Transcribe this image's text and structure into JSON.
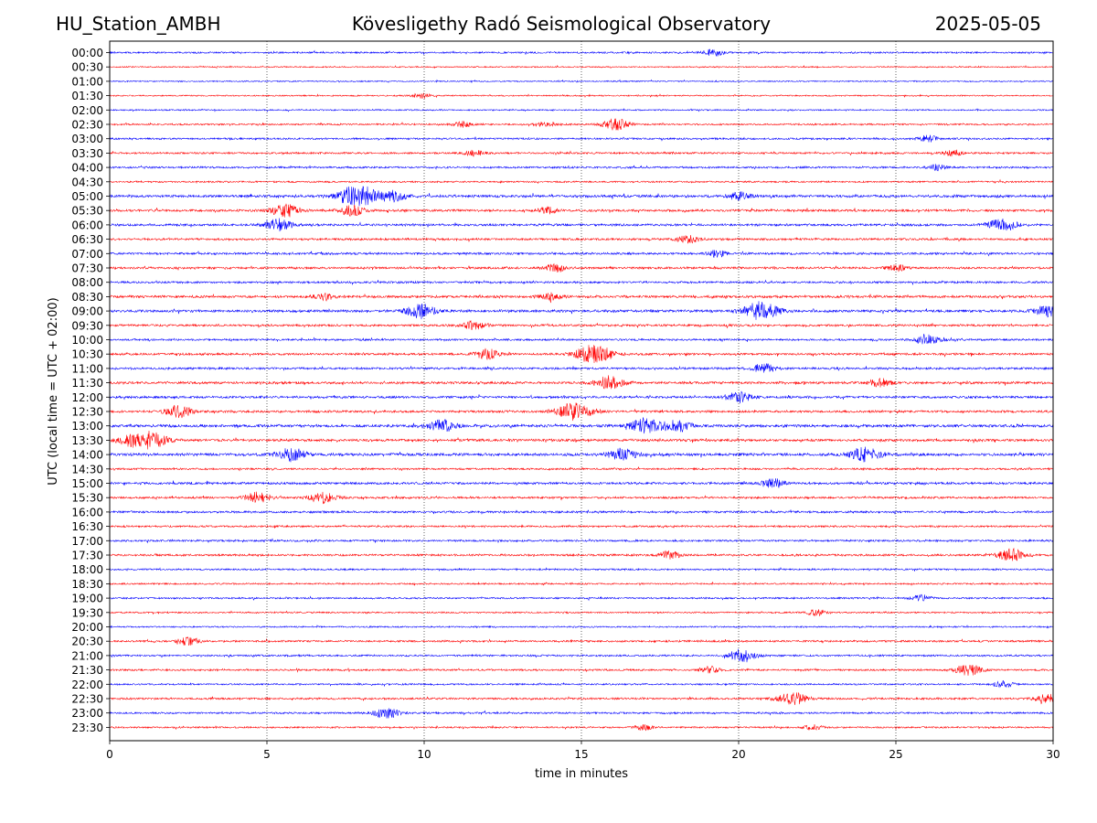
{
  "header": {
    "station": "HU_Station_AMBH",
    "observatory": "Kövesligethy Radó Seismological Observatory",
    "date": "2025-05-05"
  },
  "chart_data": {
    "type": "line",
    "title": "Kövesligethy Radó Seismological Observatory",
    "xlabel": "time in minutes",
    "ylabel": "UTC (local time = UTC + 02:00)",
    "xlim": [
      0,
      30
    ],
    "x_ticks": [
      0,
      5,
      10,
      15,
      20,
      25,
      30
    ],
    "grid": "vertical dotted lines at 5, 10, 15, 20, 25",
    "line_colors": [
      "#0000ff",
      "#ff0000"
    ],
    "rows": [
      "00:00",
      "00:30",
      "01:00",
      "01:30",
      "02:00",
      "02:30",
      "03:00",
      "03:30",
      "04:00",
      "04:30",
      "05:00",
      "05:30",
      "06:00",
      "06:30",
      "07:00",
      "07:30",
      "08:00",
      "08:30",
      "09:00",
      "09:30",
      "10:00",
      "10:30",
      "11:00",
      "11:30",
      "12:00",
      "12:30",
      "13:00",
      "13:30",
      "14:00",
      "14:30",
      "15:00",
      "15:30",
      "16:00",
      "16:30",
      "17:00",
      "17:30",
      "18:00",
      "18:30",
      "19:00",
      "19:30",
      "20:00",
      "20:30",
      "21:00",
      "21:30",
      "22:00",
      "22:30",
      "23:00",
      "23:30"
    ],
    "activity": [
      0.3,
      0.1,
      0.1,
      0.15,
      0.15,
      0.3,
      0.35,
      0.35,
      0.4,
      0.3,
      0.7,
      0.55,
      0.55,
      0.45,
      0.5,
      0.5,
      0.45,
      0.6,
      0.65,
      0.5,
      0.4,
      0.5,
      0.5,
      0.6,
      0.55,
      0.55,
      0.75,
      0.6,
      0.75,
      0.35,
      0.55,
      0.45,
      0.5,
      0.35,
      0.4,
      0.45,
      0.3,
      0.25,
      0.3,
      0.25,
      0.2,
      0.4,
      0.35,
      0.35,
      0.3,
      0.4,
      0.35,
      0.3
    ],
    "events": [
      {
        "row": "00:00",
        "t": 19.2,
        "amp": 0.5
      },
      {
        "row": "01:30",
        "t": 9.9,
        "amp": 0.4
      },
      {
        "row": "02:30",
        "t": 11.2,
        "amp": 0.45
      },
      {
        "row": "02:30",
        "t": 13.8,
        "amp": 0.4
      },
      {
        "row": "02:30",
        "t": 16.1,
        "amp": 0.9
      },
      {
        "row": "03:00",
        "t": 26.0,
        "amp": 0.5
      },
      {
        "row": "03:30",
        "t": 11.6,
        "amp": 0.45
      },
      {
        "row": "03:30",
        "t": 26.8,
        "amp": 0.5
      },
      {
        "row": "04:00",
        "t": 26.3,
        "amp": 0.45
      },
      {
        "row": "05:00",
        "t": 7.9,
        "amp": 1.7
      },
      {
        "row": "05:00",
        "t": 9.0,
        "amp": 0.8
      },
      {
        "row": "05:00",
        "t": 20.0,
        "amp": 0.6
      },
      {
        "row": "05:30",
        "t": 5.6,
        "amp": 1.0
      },
      {
        "row": "05:30",
        "t": 7.7,
        "amp": 0.8
      },
      {
        "row": "05:30",
        "t": 13.9,
        "amp": 0.5
      },
      {
        "row": "06:00",
        "t": 5.4,
        "amp": 0.9
      },
      {
        "row": "06:00",
        "t": 28.4,
        "amp": 1.0
      },
      {
        "row": "06:30",
        "t": 18.4,
        "amp": 0.6
      },
      {
        "row": "07:00",
        "t": 19.3,
        "amp": 0.5
      },
      {
        "row": "07:30",
        "t": 14.2,
        "amp": 0.6
      },
      {
        "row": "07:30",
        "t": 25.0,
        "amp": 0.5
      },
      {
        "row": "08:30",
        "t": 6.8,
        "amp": 0.55
      },
      {
        "row": "08:30",
        "t": 14.0,
        "amp": 0.6
      },
      {
        "row": "09:00",
        "t": 9.9,
        "amp": 1.1
      },
      {
        "row": "09:00",
        "t": 20.7,
        "amp": 1.4
      },
      {
        "row": "09:00",
        "t": 29.8,
        "amp": 0.8
      },
      {
        "row": "09:30",
        "t": 11.6,
        "amp": 0.7
      },
      {
        "row": "10:00",
        "t": 26.0,
        "amp": 0.8
      },
      {
        "row": "10:30",
        "t": 12.0,
        "amp": 0.8
      },
      {
        "row": "10:30",
        "t": 15.4,
        "amp": 1.5
      },
      {
        "row": "11:00",
        "t": 20.8,
        "amp": 0.7
      },
      {
        "row": "11:30",
        "t": 15.9,
        "amp": 1.0
      },
      {
        "row": "11:30",
        "t": 24.5,
        "amp": 0.7
      },
      {
        "row": "12:00",
        "t": 20.0,
        "amp": 0.8
      },
      {
        "row": "12:30",
        "t": 2.2,
        "amp": 0.9
      },
      {
        "row": "12:30",
        "t": 14.8,
        "amp": 1.4
      },
      {
        "row": "13:00",
        "t": 10.6,
        "amp": 0.9
      },
      {
        "row": "13:00",
        "t": 17.0,
        "amp": 1.1
      },
      {
        "row": "13:00",
        "t": 18.0,
        "amp": 1.0
      },
      {
        "row": "13:30",
        "t": 1.3,
        "amp": 1.3
      },
      {
        "row": "13:30",
        "t": 0.6,
        "amp": 0.7
      },
      {
        "row": "14:00",
        "t": 5.8,
        "amp": 1.0
      },
      {
        "row": "14:00",
        "t": 16.3,
        "amp": 0.9
      },
      {
        "row": "14:00",
        "t": 24.0,
        "amp": 1.1
      },
      {
        "row": "15:00",
        "t": 21.1,
        "amp": 0.7
      },
      {
        "row": "15:30",
        "t": 4.7,
        "amp": 0.8
      },
      {
        "row": "15:30",
        "t": 6.8,
        "amp": 0.9
      },
      {
        "row": "17:30",
        "t": 17.8,
        "amp": 0.6
      },
      {
        "row": "17:30",
        "t": 28.7,
        "amp": 1.0
      },
      {
        "row": "19:00",
        "t": 25.8,
        "amp": 0.5
      },
      {
        "row": "19:30",
        "t": 22.5,
        "amp": 0.5
      },
      {
        "row": "20:30",
        "t": 2.5,
        "amp": 0.6
      },
      {
        "row": "21:00",
        "t": 20.1,
        "amp": 1.0
      },
      {
        "row": "21:30",
        "t": 27.3,
        "amp": 0.9
      },
      {
        "row": "21:30",
        "t": 19.1,
        "amp": 0.5
      },
      {
        "row": "22:00",
        "t": 28.4,
        "amp": 0.5
      },
      {
        "row": "22:30",
        "t": 21.7,
        "amp": 1.0
      },
      {
        "row": "22:30",
        "t": 29.8,
        "amp": 0.7
      },
      {
        "row": "23:00",
        "t": 8.8,
        "amp": 0.8
      },
      {
        "row": "23:30",
        "t": 22.4,
        "amp": 0.45
      },
      {
        "row": "23:30",
        "t": 17.0,
        "amp": 0.4
      }
    ]
  }
}
